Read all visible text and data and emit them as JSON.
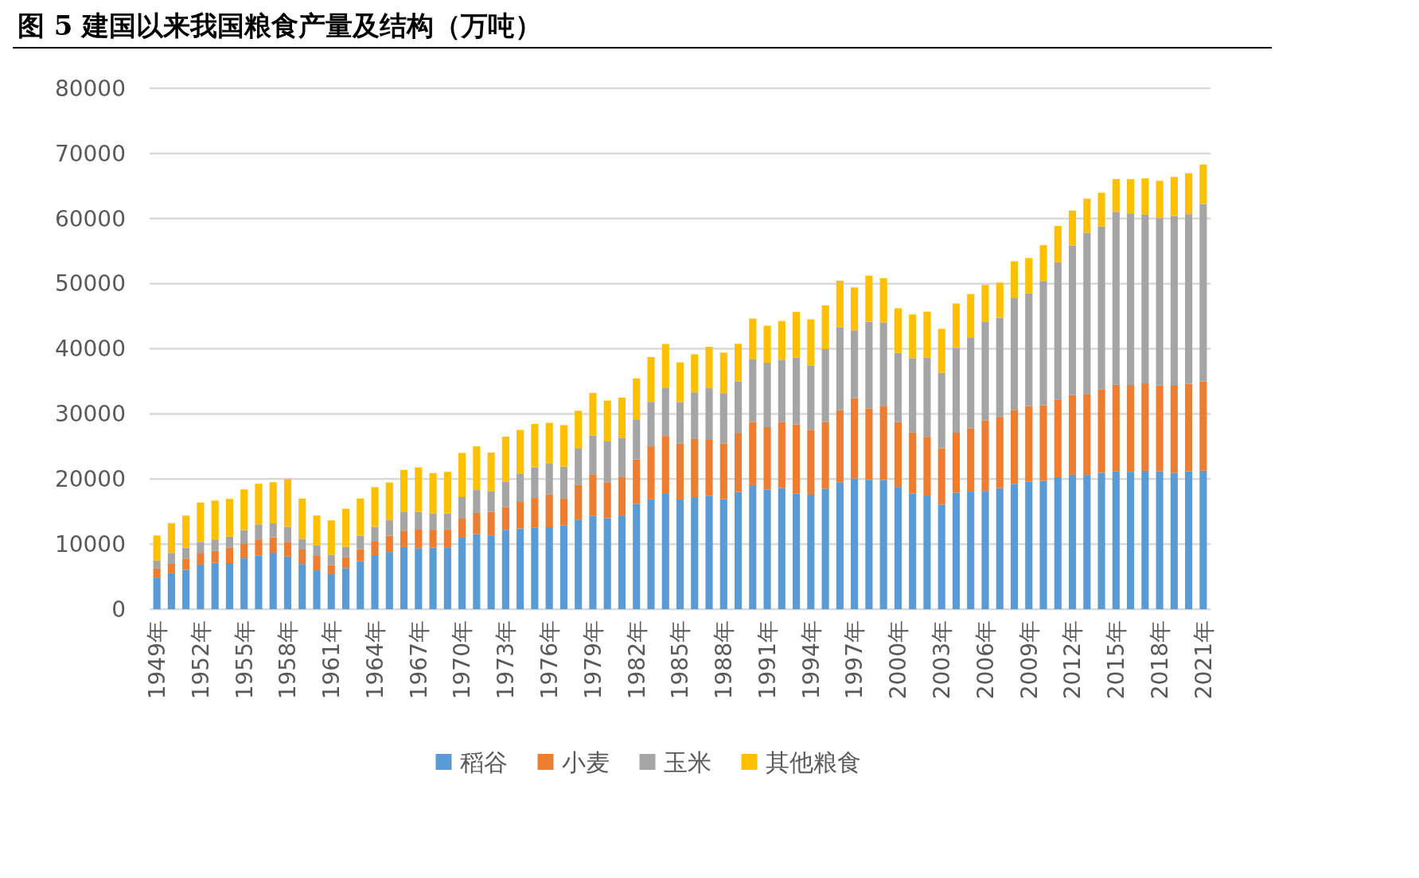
{
  "chart_data": {
    "type": "bar",
    "stacked": true,
    "title": "图 5 建国以来我国粮食产量及结构（万吨）",
    "categories": [
      "1949年",
      null,
      null,
      "1952年",
      null,
      null,
      "1955年",
      null,
      null,
      "1958年",
      null,
      null,
      "1961年",
      null,
      null,
      "1964年",
      null,
      null,
      "1967年",
      null,
      null,
      "1970年",
      null,
      null,
      "1973年",
      null,
      null,
      "1976年",
      null,
      null,
      "1979年",
      null,
      null,
      "1982年",
      null,
      null,
      "1985年",
      null,
      null,
      "1988年",
      null,
      null,
      "1991年",
      null,
      null,
      "1994年",
      null,
      null,
      "1997年",
      null,
      null,
      "2000年",
      null,
      null,
      "2003年",
      null,
      null,
      "2006年",
      null,
      null,
      "2009年",
      null,
      null,
      "2012年",
      null,
      null,
      "2015年",
      null,
      null,
      "2018年",
      null,
      null,
      "2021年"
    ],
    "series": [
      {
        "name": "稻谷",
        "color": "#5b9bd5",
        "values": [
          4865,
          5510,
          6056,
          6843,
          7127,
          7085,
          7803,
          8248,
          8678,
          8085,
          6937,
          5973,
          5364,
          6299,
          7377,
          8300,
          8772,
          9539,
          9369,
          9453,
          9507,
          10999,
          11521,
          11336,
          12174,
          12391,
          12556,
          12581,
          12857,
          13693,
          14375,
          13991,
          14396,
          16160,
          16887,
          17826,
          16857,
          17222,
          17426,
          16911,
          18013,
          18933,
          18381,
          18622,
          17751,
          17593,
          18523,
          19510,
          20074,
          19871,
          19849,
          18791,
          17758,
          17454,
          16066,
          17909,
          18059,
          18172,
          18603,
          19261,
          19620,
          19723,
          20288,
          20653,
          20629,
          20961,
          21214,
          21109,
          21268,
          21213,
          20961,
          21186,
          21284
        ]
      },
      {
        "name": "小麦",
        "color": "#ed7d31",
        "values": [
          1381,
          1450,
          1725,
          1813,
          1828,
          2334,
          2297,
          2480,
          2364,
          2259,
          2218,
          2217,
          1425,
          1667,
          1848,
          2084,
          2522,
          2528,
          2849,
          2746,
          2729,
          2919,
          3258,
          3599,
          3523,
          4087,
          4531,
          5039,
          4108,
          5384,
          6273,
          5521,
          5964,
          6847,
          8139,
          8782,
          8581,
          9005,
          8590,
          8543,
          9081,
          9823,
          9595,
          10159,
          10639,
          9930,
          10221,
          11057,
          12329,
          10973,
          11388,
          9964,
          9387,
          9029,
          8649,
          9195,
          9745,
          10847,
          10930,
          11293,
          11583,
          11609,
          11857,
          12247,
          12364,
          12832,
          13256,
          13327,
          13424,
          13144,
          13360,
          13425,
          13695
        ]
      },
      {
        "name": "玉米",
        "color": "#a5a5a5",
        "values": [
          1242,
          1685,
          1684,
          1685,
          1669,
          1714,
          2032,
          2305,
          2144,
          2313,
          1664,
          1603,
          1549,
          1626,
          2058,
          2269,
          2366,
          2842,
          2736,
          2505,
          2475,
          3303,
          3525,
          3210,
          3862,
          4291,
          4722,
          4816,
          4939,
          5595,
          6004,
          6260,
          5921,
          6056,
          6821,
          7341,
          6383,
          7086,
          7924,
          7735,
          7893,
          9682,
          9877,
          9538,
          10270,
          9928,
          11199,
          12747,
          10431,
          13295,
          12809,
          10600,
          11409,
          12131,
          11583,
          13029,
          13937,
          15160,
          15230,
          17212,
          17326,
          19075,
          21132,
          22956,
          24845,
          24976,
          26499,
          26361,
          25907,
          25717,
          26078,
          26067,
          27255
        ]
      },
      {
        "name": "其他粮食",
        "color": "#ffc000",
        "values": [
          3830,
          4568,
          4904,
          6051,
          6059,
          5819,
          6262,
          6242,
          6319,
          7343,
          6181,
          4592,
          5312,
          5849,
          5717,
          6097,
          5793,
          6491,
          6828,
          6202,
          6386,
          6775,
          6710,
          5903,
          6935,
          6758,
          6643,
          6195,
          6369,
          5805,
          6560,
          6284,
          6221,
          6387,
          6881,
          6782,
          6090,
          5838,
          6358,
          6219,
          5768,
          6186,
          5676,
          5947,
          6989,
          7059,
          6719,
          7140,
          6583,
          7091,
          6793,
          6863,
          6710,
          7092,
          6772,
          6814,
          6661,
          5625,
          5397,
          5668,
          5412,
          5504,
          5572,
          5367,
          5210,
          5196,
          5091,
          5247,
          5562,
          5715,
          5985,
          6271,
          6051
        ]
      }
    ],
    "ylim": [
      0,
      80000
    ],
    "yticks": [
      0,
      10000,
      20000,
      30000,
      40000,
      50000,
      60000,
      70000,
      80000
    ],
    "grid": "y",
    "legend": "bottom"
  }
}
